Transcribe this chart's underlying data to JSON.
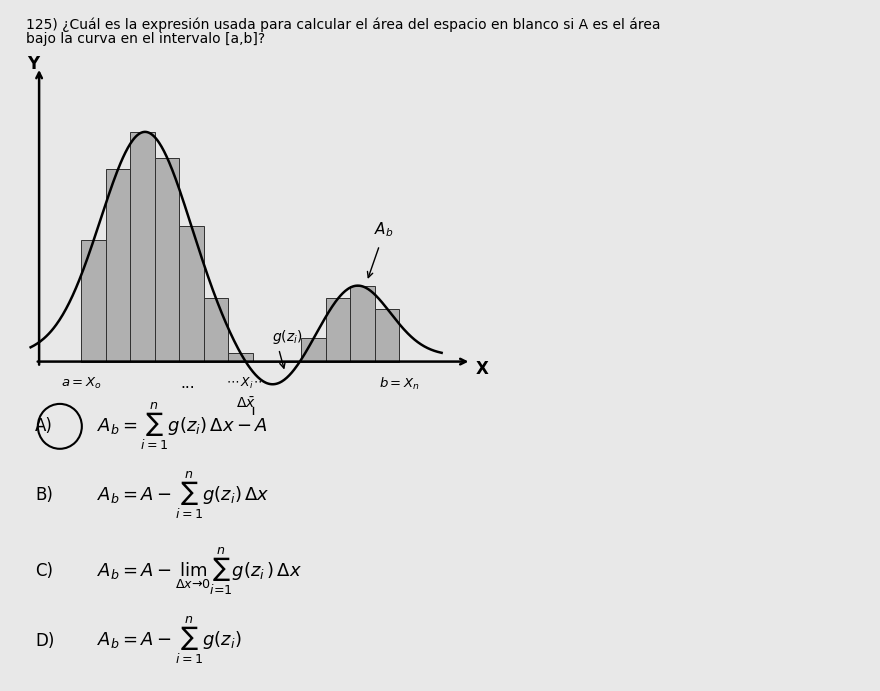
{
  "title_line1": "125) ¿Cuál es la expresión usada para calcular el área del espacio en blanco si A es el área",
  "title_line2": "bajo la curva en el intervalo [a,b]?",
  "background_color": "#e8e8e8",
  "bar_color": "#b0b0b0",
  "bar_edge_color": "#303030",
  "curve_color": "#000000",
  "n_bars": 13,
  "x_a": 1.0,
  "x_b": 8.5,
  "xlim": [
    -0.3,
    10.5
  ],
  "ylim": [
    -0.9,
    5.2
  ],
  "answers": [
    {
      "label": "A)",
      "formula": "$A_b = \\sum_{i=1}^{n}g(z_i)\\,\\Delta x - A$",
      "circled": true
    },
    {
      "label": "B)",
      "formula": "$A_b = A - \\sum_{i=1}^{n}g(z_i)\\,\\Delta x$",
      "circled": false
    },
    {
      "label": "C)",
      "formula": "$A_b = A - \\lim_{\\Delta x\\to 0}\\sum_{i=1}^{n}g(z_i)\\,\\Delta x$",
      "circled": false
    },
    {
      "label": "D)",
      "formula": "$A_b = A - \\sum_{i=1}^{n}g(z_i)$",
      "circled": false
    }
  ]
}
